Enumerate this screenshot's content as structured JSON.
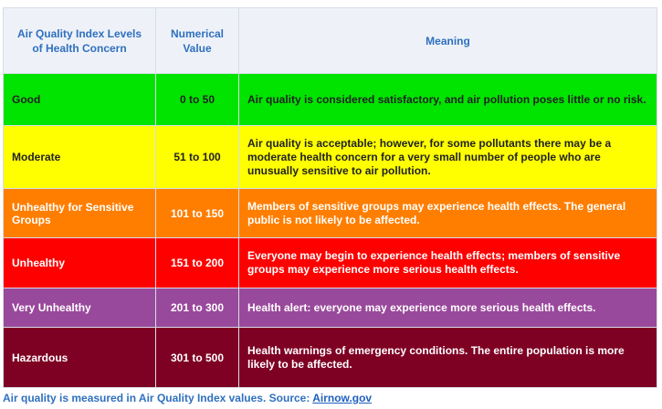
{
  "headers": {
    "level": "Air Quality Index Levels of Health Concern",
    "value": "Numerical Value",
    "meaning": "Meaning"
  },
  "rows": [
    {
      "level": "Good",
      "value": "0 to 50",
      "meaning": "Air quality is considered satisfactory, and air pollution poses little or no risk.",
      "color": "#00e400",
      "text_color": "#222222"
    },
    {
      "level": "Moderate",
      "value": "51 to 100",
      "meaning": "Air quality is acceptable; however, for some pollutants there may be a moderate health concern for a very small number of people who are unusually sensitive to air pollution.",
      "color": "#ffff00",
      "text_color": "#222222"
    },
    {
      "level": "Unhealthy for Sensitive Groups",
      "value": "101 to 150",
      "meaning": "Members of sensitive groups may experience health effects. The general public is not likely to be affected.",
      "color": "#ff7e00",
      "text_color": "#ffffff"
    },
    {
      "level": "Unhealthy",
      "value": "151 to 200",
      "meaning": "Everyone may begin to experience health effects; members of sensitive groups may experience more serious health effects.",
      "color": "#ff0000",
      "text_color": "#ffffff"
    },
    {
      "level": "Very Unhealthy",
      "value": "201 to 300",
      "meaning": "Health alert: everyone may experience more serious health effects.",
      "color": "#99499b",
      "text_color": "#ffffff"
    },
    {
      "level": "Hazardous",
      "value": "301 to 500",
      "meaning": "Health warnings of emergency conditions. The entire population is more likely to be affected.",
      "color": "#7e0023",
      "text_color": "#ffffff"
    }
  ],
  "caption": {
    "text": "Air quality is measured in Air Quality Index values. Source: ",
    "link": "Airnow.gov"
  }
}
